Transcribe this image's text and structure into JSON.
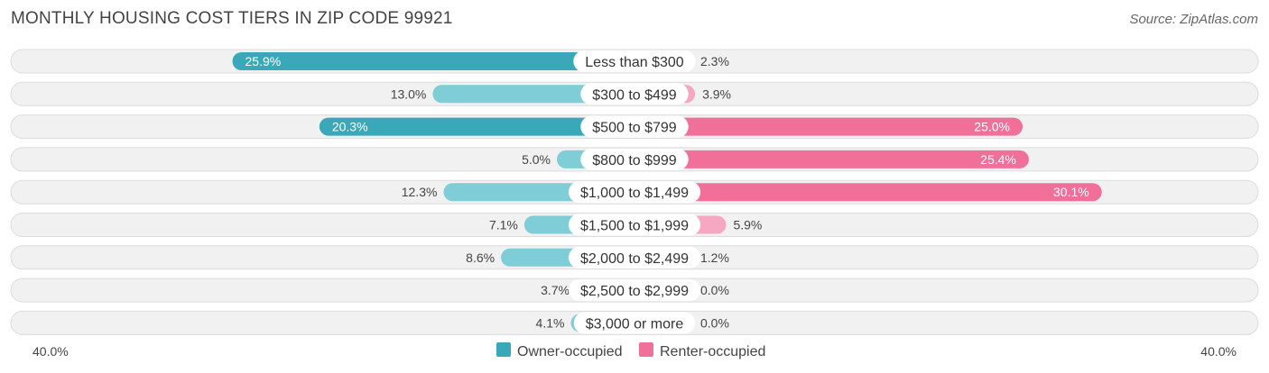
{
  "title": "MONTHLY HOUSING COST TIERS IN ZIP CODE 99921",
  "source": "Source: ZipAtlas.com",
  "colors": {
    "owner": "#3aa8b8",
    "owner_light": "#7fcdd6",
    "renter": "#f0709a",
    "renter_light": "#f6a8c2"
  },
  "chart_data": {
    "type": "bar",
    "orientation": "horizontal-diverging",
    "categories": [
      "Less than $300",
      "$300 to $499",
      "$500 to $799",
      "$800 to $999",
      "$1,000 to $1,499",
      "$1,500 to $1,999",
      "$2,000 to $2,499",
      "$2,500 to $2,999",
      "$3,000 or more"
    ],
    "series": [
      {
        "name": "Owner-occupied",
        "values": [
          25.9,
          13.0,
          20.3,
          5.0,
          12.3,
          7.1,
          8.6,
          3.7,
          4.1
        ]
      },
      {
        "name": "Renter-occupied",
        "values": [
          2.3,
          3.9,
          25.0,
          25.4,
          30.1,
          5.9,
          1.2,
          0.0,
          0.0
        ]
      }
    ],
    "value_labels": {
      "Owner-occupied": [
        "25.9%",
        "13.0%",
        "20.3%",
        "5.0%",
        "12.3%",
        "7.1%",
        "8.6%",
        "3.7%",
        "4.1%"
      ],
      "Renter-occupied": [
        "2.3%",
        "3.9%",
        "25.0%",
        "25.4%",
        "30.1%",
        "5.9%",
        "1.2%",
        "0.0%",
        "0.0%"
      ]
    },
    "axis_max": 40.0,
    "axis_left_label": "40.0%",
    "axis_right_label": "40.0%",
    "legend_position": "bottom-center"
  }
}
